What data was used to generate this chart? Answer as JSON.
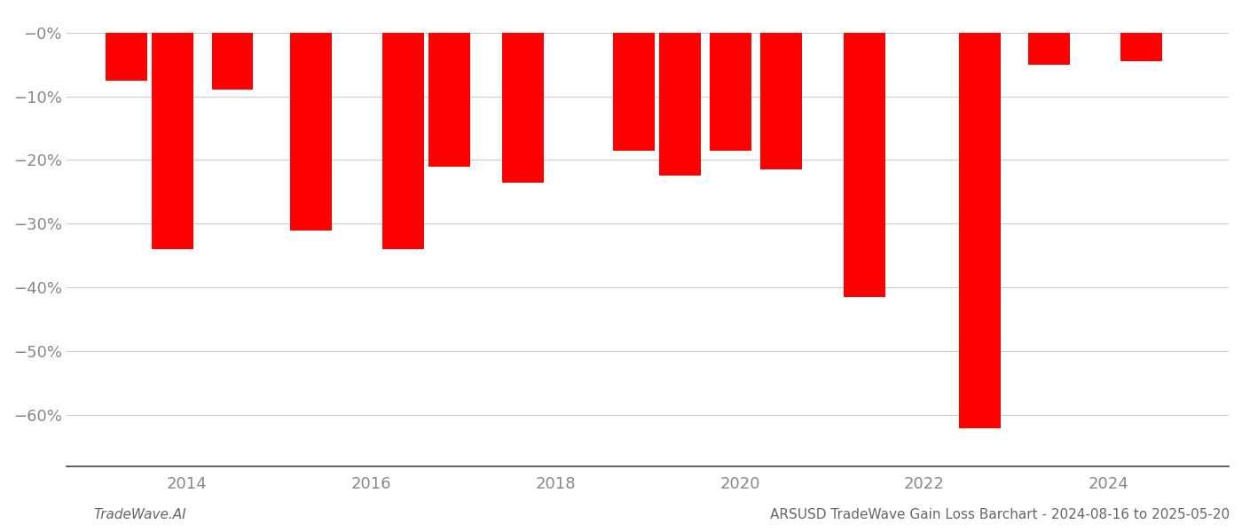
{
  "x_positions": [
    2013.35,
    2013.85,
    2014.5,
    2015.35,
    2016.35,
    2016.85,
    2017.65,
    2018.85,
    2019.35,
    2019.9,
    2020.45,
    2021.35,
    2022.6,
    2023.35,
    2024.35
  ],
  "values": [
    -7.5,
    -34.0,
    -9.0,
    -31.0,
    -34.0,
    -21.0,
    -23.5,
    -18.5,
    -22.5,
    -18.5,
    -21.5,
    -41.5,
    -62.0,
    -5.0,
    -4.5
  ],
  "bar_color": "#ff0000",
  "ylim": [
    -68,
    3
  ],
  "yticks": [
    0,
    -10,
    -20,
    -30,
    -40,
    -50,
    -60
  ],
  "ytick_labels": [
    "−0%",
    "−10%",
    "−20%",
    "−30%",
    "−40%",
    "−50%",
    "−60%"
  ],
  "bar_width": 0.45,
  "xlim": [
    2012.7,
    2025.3
  ],
  "xticks": [
    2014,
    2016,
    2018,
    2020,
    2022,
    2024
  ],
  "xtick_labels": [
    "2014",
    "2016",
    "2018",
    "2020",
    "2022",
    "2024"
  ],
  "background_color": "#ffffff",
  "grid_color": "#cccccc",
  "spine_color": "#444444",
  "tick_label_color": "#888888",
  "footer_left": "TradeWave.AI",
  "footer_right": "ARSUSD TradeWave Gain Loss Barchart - 2024-08-16 to 2025-05-20",
  "footer_fontsize": 11
}
